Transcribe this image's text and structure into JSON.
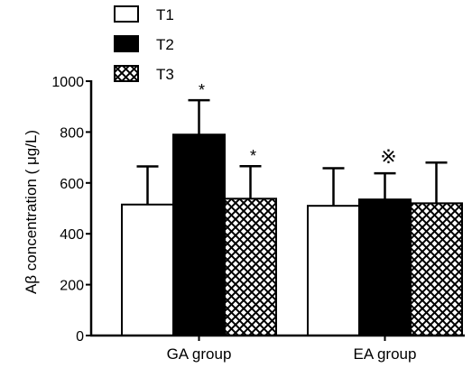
{
  "chart_data": {
    "type": "bar",
    "ylabel": "Aβ concentration ( μg/L)",
    "xlabel": "",
    "ylim": [
      0,
      1000
    ],
    "yticks": [
      0,
      200,
      400,
      600,
      800,
      1000
    ],
    "grid": false,
    "legend_position": "top-left",
    "categories": [
      "GA group",
      "EA group"
    ],
    "series": [
      {
        "name": "T1",
        "pattern": "white",
        "values": [
          515,
          510
        ],
        "errors": [
          150,
          148
        ]
      },
      {
        "name": "T2",
        "pattern": "black",
        "values": [
          790,
          535
        ],
        "errors": [
          135,
          103
        ]
      },
      {
        "name": "T3",
        "pattern": "crosshatch",
        "values": [
          538,
          520
        ],
        "errors": [
          128,
          160
        ]
      }
    ],
    "annotations": [
      {
        "category": 0,
        "series": 1,
        "text": "*"
      },
      {
        "category": 0,
        "series": 2,
        "text": "*"
      },
      {
        "category": 1,
        "series": 1,
        "text": "※"
      }
    ]
  }
}
